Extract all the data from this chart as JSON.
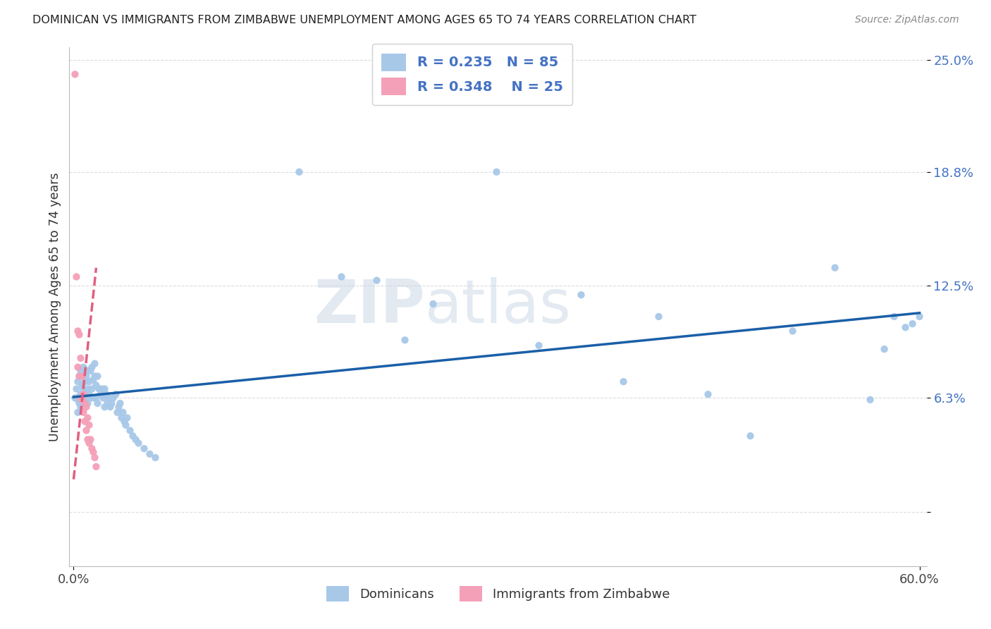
{
  "title": "DOMINICAN VS IMMIGRANTS FROM ZIMBABWE UNEMPLOYMENT AMONG AGES 65 TO 74 YEARS CORRELATION CHART",
  "source": "Source: ZipAtlas.com",
  "ylabel": "Unemployment Among Ages 65 to 74 years",
  "watermark": "ZIPatlas",
  "xlim": [
    -0.003,
    0.605
  ],
  "ylim": [
    -0.03,
    0.257
  ],
  "xtick_positions": [
    0.0,
    0.6
  ],
  "xtick_labels": [
    "0.0%",
    "60.0%"
  ],
  "ytick_values": [
    0.0,
    0.063,
    0.125,
    0.188,
    0.25
  ],
  "ytick_labels": [
    "",
    "6.3%",
    "12.5%",
    "18.8%",
    "25.0%"
  ],
  "series1_color": "#a8c8e8",
  "series2_color": "#f4a0b8",
  "trendline1_color": "#1a5fa8",
  "trendline2_color": "#e06080",
  "R1": 0.235,
  "N1": 85,
  "R2": 0.348,
  "N2": 25,
  "legend_label1": "Dominicans",
  "legend_label2": "Immigrants from Zimbabwe",
  "dom_x": [
    0.001,
    0.002,
    0.002,
    0.003,
    0.003,
    0.003,
    0.004,
    0.004,
    0.005,
    0.005,
    0.005,
    0.006,
    0.006,
    0.007,
    0.007,
    0.007,
    0.008,
    0.008,
    0.009,
    0.009,
    0.01,
    0.01,
    0.01,
    0.011,
    0.011,
    0.012,
    0.012,
    0.013,
    0.013,
    0.014,
    0.014,
    0.015,
    0.015,
    0.016,
    0.016,
    0.017,
    0.017,
    0.018,
    0.019,
    0.02,
    0.021,
    0.022,
    0.022,
    0.023,
    0.024,
    0.025,
    0.026,
    0.027,
    0.028,
    0.03,
    0.031,
    0.032,
    0.033,
    0.034,
    0.035,
    0.036,
    0.037,
    0.038,
    0.04,
    0.042,
    0.044,
    0.046,
    0.05,
    0.054,
    0.058,
    0.16,
    0.19,
    0.215,
    0.235,
    0.255,
    0.3,
    0.33,
    0.36,
    0.39,
    0.415,
    0.45,
    0.48,
    0.51,
    0.54,
    0.565,
    0.575,
    0.582,
    0.59,
    0.595,
    0.6
  ],
  "dom_y": [
    0.063,
    0.063,
    0.068,
    0.055,
    0.062,
    0.072,
    0.06,
    0.075,
    0.058,
    0.065,
    0.078,
    0.063,
    0.07,
    0.058,
    0.068,
    0.08,
    0.063,
    0.072,
    0.065,
    0.075,
    0.06,
    0.068,
    0.078,
    0.065,
    0.072,
    0.063,
    0.078,
    0.08,
    0.068,
    0.073,
    0.063,
    0.075,
    0.082,
    0.07,
    0.063,
    0.075,
    0.06,
    0.068,
    0.065,
    0.068,
    0.063,
    0.068,
    0.058,
    0.065,
    0.06,
    0.063,
    0.058,
    0.06,
    0.063,
    0.065,
    0.055,
    0.058,
    0.06,
    0.052,
    0.055,
    0.05,
    0.048,
    0.052,
    0.045,
    0.042,
    0.04,
    0.038,
    0.035,
    0.032,
    0.03,
    0.188,
    0.13,
    0.128,
    0.095,
    0.115,
    0.188,
    0.092,
    0.12,
    0.072,
    0.108,
    0.065,
    0.042,
    0.1,
    0.135,
    0.062,
    0.09,
    0.108,
    0.102,
    0.104,
    0.108
  ],
  "zim_x": [
    0.001,
    0.002,
    0.003,
    0.003,
    0.004,
    0.004,
    0.005,
    0.005,
    0.006,
    0.006,
    0.007,
    0.007,
    0.008,
    0.008,
    0.009,
    0.009,
    0.01,
    0.01,
    0.011,
    0.011,
    0.012,
    0.013,
    0.014,
    0.015,
    0.016
  ],
  "zim_y": [
    0.242,
    0.13,
    0.1,
    0.08,
    0.098,
    0.075,
    0.085,
    0.063,
    0.075,
    0.062,
    0.065,
    0.055,
    0.06,
    0.05,
    0.058,
    0.045,
    0.052,
    0.04,
    0.048,
    0.038,
    0.04,
    0.035,
    0.033,
    0.03,
    0.025
  ],
  "dom_trendline_x0": 0.0,
  "dom_trendline_x1": 0.6,
  "dom_trendline_y0": 0.0635,
  "dom_trendline_y1": 0.11,
  "zim_trendline_x0": 0.0,
  "zim_trendline_x1": 0.016,
  "zim_trendline_y0": 0.018,
  "zim_trendline_y1": 0.135
}
